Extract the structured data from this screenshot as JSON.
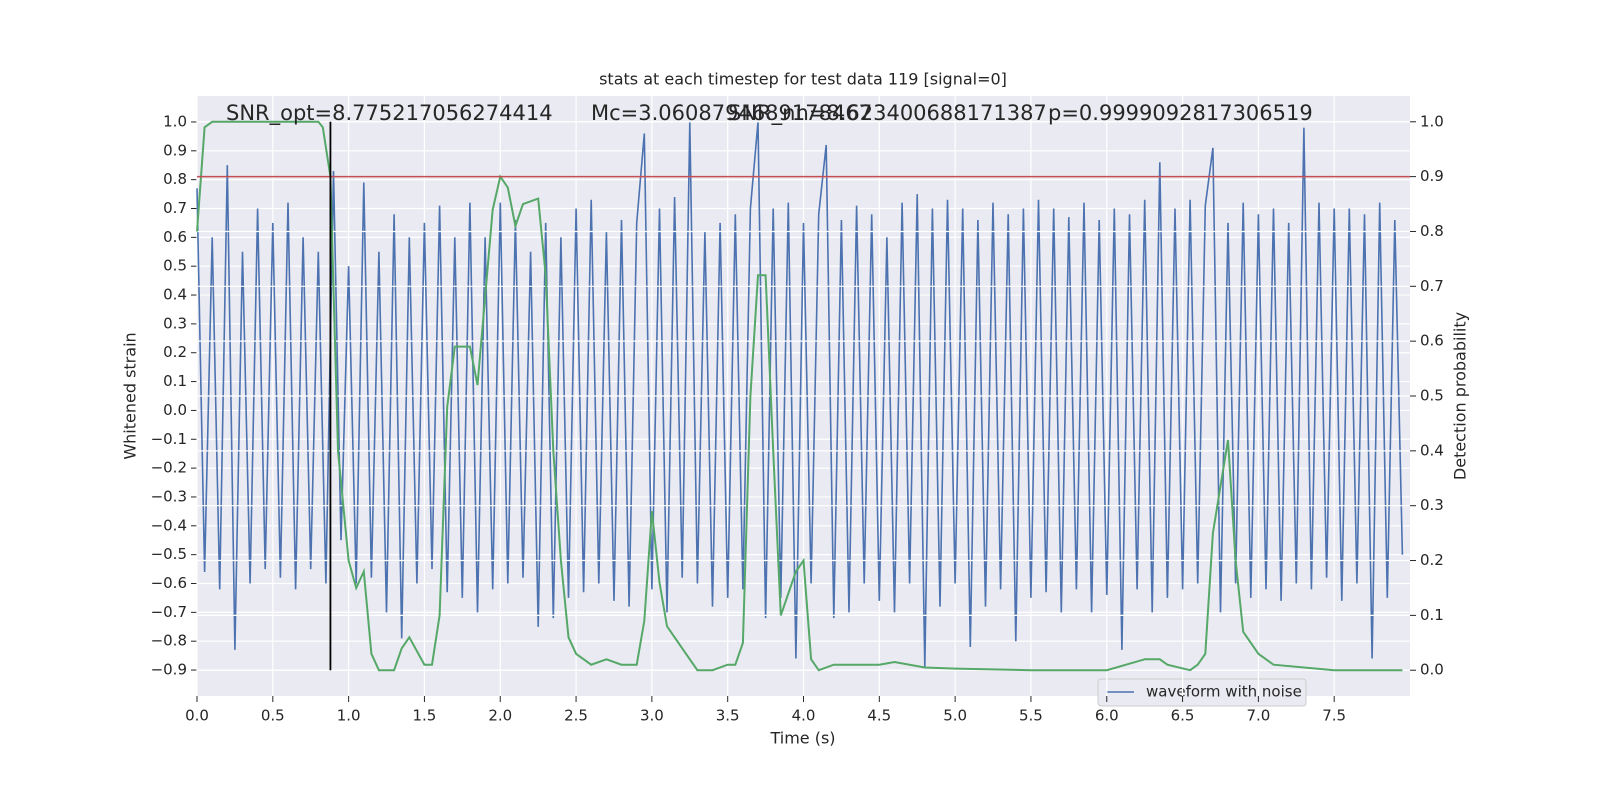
{
  "chart_data": {
    "type": "line",
    "title": "stats at each timestep for test data 119 [signal=0]",
    "annotations": [
      "SNR_opt=8.775217056274414",
      "Mc=3.0608794689178467",
      "SNR_nn=8.623400688171387",
      "p=0.9999092817306519"
    ],
    "xlabel": "Time (s)",
    "ylabel": "Whitened strain",
    "y2label": "Detection probability",
    "xlim": [
      0,
      8
    ],
    "ylim": [
      -0.99,
      1.09
    ],
    "y2lim": [
      -0.047,
      1.047
    ],
    "xticks": [
      {
        "value": 0,
        "label": "0.0"
      },
      0.5,
      {
        "value": 1,
        "label": "1.0"
      },
      1.5,
      {
        "value": 2,
        "label": "2.0"
      },
      2.5,
      {
        "value": 3,
        "label": "3.0"
      },
      3.5,
      {
        "value": 4,
        "label": "4.0"
      },
      4.5,
      {
        "value": 5,
        "label": "5.0"
      },
      5.5,
      {
        "value": 6,
        "label": "6.0"
      },
      6.5,
      {
        "value": 7,
        "label": "7.0"
      },
      7.5
    ],
    "yticks": [
      {
        "value": -0.9,
        "label": "−0.9"
      },
      {
        "value": -0.8,
        "label": "−0.8"
      },
      {
        "value": -0.7,
        "label": "−0.7"
      },
      {
        "value": -0.6,
        "label": "−0.6"
      },
      {
        "value": -0.5,
        "label": "−0.5"
      },
      {
        "value": -0.4,
        "label": "−0.4"
      },
      {
        "value": -0.3,
        "label": "−0.3"
      },
      {
        "value": -0.2,
        "label": "−0.2"
      },
      {
        "value": -0.1,
        "label": "−0.1"
      },
      {
        "value": 0,
        "label": "0.0"
      },
      0.1,
      0.2,
      0.3,
      0.4,
      0.5,
      0.6,
      0.7,
      0.8,
      0.9,
      {
        "value": 1,
        "label": "1.0"
      }
    ],
    "y2ticks": [
      {
        "value": 0,
        "label": "0.0"
      },
      0.1,
      0.2,
      0.3,
      0.4,
      0.5,
      0.6,
      0.7,
      0.8,
      0.9,
      {
        "value": 1,
        "label": "1.0"
      }
    ],
    "grid": true,
    "legend": "lower right",
    "threshold": 0.9,
    "threshold_color": "#c44e52",
    "marker_x": 0.88,
    "marker_color": "#000000",
    "series": [
      {
        "name": "waveform with noise",
        "color": "#4c72b0",
        "x": [
          0,
          0.05,
          0.1,
          0.15,
          0.2,
          0.25,
          0.3,
          0.35,
          0.4,
          0.45,
          0.5,
          0.55,
          0.6,
          0.65,
          0.7,
          0.75,
          0.8,
          0.85,
          0.9,
          0.95,
          1,
          1.05,
          1.1,
          1.15,
          1.2,
          1.25,
          1.3,
          1.35,
          1.4,
          1.45,
          1.5,
          1.55,
          1.6,
          1.65,
          1.7,
          1.75,
          1.8,
          1.85,
          1.9,
          1.95,
          2,
          2.05,
          2.1,
          2.15,
          2.2,
          2.25,
          2.3,
          2.35,
          2.4,
          2.45,
          2.5,
          2.55,
          2.6,
          2.65,
          2.7,
          2.75,
          2.8,
          2.85,
          2.9,
          2.95,
          3,
          3.05,
          3.1,
          3.15,
          3.2,
          3.25,
          3.3,
          3.35,
          3.4,
          3.45,
          3.5,
          3.55,
          3.6,
          3.65,
          3.7,
          3.75,
          3.8,
          3.85,
          3.9,
          3.95,
          4,
          4.05,
          4.1,
          4.15,
          4.2,
          4.25,
          4.3,
          4.35,
          4.4,
          4.45,
          4.5,
          4.55,
          4.6,
          4.65,
          4.7,
          4.75,
          4.8,
          4.85,
          4.9,
          4.95,
          5,
          5.05,
          5.1,
          5.15,
          5.2,
          5.25,
          5.3,
          5.35,
          5.4,
          5.45,
          5.5,
          5.55,
          5.6,
          5.65,
          5.7,
          5.75,
          5.8,
          5.85,
          5.9,
          5.95,
          6,
          6.05,
          6.1,
          6.15,
          6.2,
          6.25,
          6.3,
          6.35,
          6.4,
          6.45,
          6.5,
          6.55,
          6.6,
          6.65,
          6.7,
          6.75,
          6.8,
          6.85,
          6.9,
          6.95,
          7,
          7.05,
          7.1,
          7.15,
          7.2,
          7.25,
          7.3,
          7.35,
          7.4,
          7.45,
          7.5,
          7.55,
          7.6,
          7.65,
          7.7,
          7.75,
          7.8,
          7.85,
          7.9,
          7.95
        ],
        "values": [
          0.77,
          -0.56,
          0.6,
          -0.62,
          0.85,
          -0.83,
          0.55,
          -0.6,
          0.7,
          -0.55,
          0.65,
          -0.58,
          0.72,
          -0.62,
          0.6,
          -0.55,
          0.55,
          -0.6,
          0.83,
          -0.45,
          0.5,
          -0.6,
          0.79,
          -0.58,
          0.55,
          -0.7,
          0.68,
          -0.79,
          0.6,
          -0.6,
          0.65,
          -0.55,
          0.71,
          -0.63,
          0.6,
          -0.65,
          0.72,
          -0.7,
          0.6,
          -0.62,
          0.72,
          -0.6,
          0.66,
          -0.58,
          0.55,
          -0.75,
          0.65,
          -0.72,
          0.6,
          -0.65,
          0.7,
          -0.63,
          0.73,
          -0.6,
          0.62,
          -0.66,
          0.66,
          -0.68,
          0.65,
          0.96,
          -0.62,
          0.7,
          -0.7,
          0.74,
          -0.58,
          1.0,
          -0.6,
          0.62,
          -0.68,
          0.65,
          -0.65,
          0.68,
          -0.62,
          0.7,
          1.0,
          -0.72,
          0.7,
          -0.65,
          0.72,
          -0.86,
          0.65,
          -0.6,
          0.68,
          0.92,
          -0.72,
          0.66,
          -0.7,
          0.71,
          -0.6,
          0.68,
          -0.66,
          0.6,
          -0.7,
          0.72,
          -0.6,
          0.75,
          -0.89,
          0.7,
          -0.68,
          0.73,
          -0.6,
          0.7,
          -0.82,
          0.66,
          -0.68,
          0.72,
          -0.62,
          0.68,
          -0.8,
          0.7,
          -0.65,
          0.73,
          -0.63,
          0.7,
          -0.7,
          0.67,
          -0.62,
          0.72,
          -0.7,
          0.66,
          -0.64,
          0.7,
          -0.83,
          0.68,
          -0.62,
          0.73,
          -0.7,
          0.86,
          -0.65,
          0.7,
          -0.62,
          0.73,
          -0.6,
          0.71,
          0.91,
          -0.7,
          0.65,
          -0.6,
          0.72,
          -0.65,
          0.68,
          -0.62,
          0.7,
          -0.66,
          0.65,
          -0.6,
          0.98,
          -0.62,
          0.72,
          -0.58,
          0.7,
          -0.66,
          0.7,
          -0.6,
          0.68,
          -0.86,
          0.72,
          -0.65,
          0.66,
          -0.5
        ]
      },
      {
        "color": "#55a868",
        "axis": "y2",
        "x": [
          0,
          0.05,
          0.1,
          0.2,
          0.4,
          0.6,
          0.8,
          0.83,
          0.88,
          0.93,
          1,
          1.05,
          1.1,
          1.15,
          1.2,
          1.3,
          1.35,
          1.4,
          1.5,
          1.55,
          1.6,
          1.65,
          1.7,
          1.8,
          1.85,
          1.95,
          2,
          2.05,
          2.1,
          2.15,
          2.25,
          2.3,
          2.35,
          2.4,
          2.45,
          2.5,
          2.6,
          2.7,
          2.8,
          2.9,
          2.95,
          3,
          3.05,
          3.1,
          3.25,
          3.3,
          3.4,
          3.5,
          3.55,
          3.6,
          3.65,
          3.7,
          3.75,
          3.8,
          3.85,
          3.95,
          4,
          4.05,
          4.1,
          4.2,
          4.5,
          4.6,
          4.8,
          5,
          5.5,
          6,
          6.25,
          6.35,
          6.4,
          6.55,
          6.6,
          6.65,
          6.7,
          6.8,
          6.85,
          6.9,
          7,
          7.1,
          7.5,
          7.95
        ],
        "values": [
          0.8,
          0.99,
          1.0,
          1.0,
          1.0,
          1.0,
          1.0,
          0.99,
          0.9,
          0.4,
          0.2,
          0.15,
          0.18,
          0.03,
          0.0,
          0.0,
          0.04,
          0.06,
          0.01,
          0.01,
          0.1,
          0.48,
          0.59,
          0.59,
          0.52,
          0.84,
          0.9,
          0.88,
          0.81,
          0.85,
          0.86,
          0.72,
          0.4,
          0.2,
          0.06,
          0.03,
          0.01,
          0.02,
          0.01,
          0.01,
          0.09,
          0.29,
          0.16,
          0.08,
          0.02,
          0.0,
          0.0,
          0.01,
          0.01,
          0.05,
          0.5,
          0.72,
          0.72,
          0.4,
          0.1,
          0.18,
          0.2,
          0.02,
          0.0,
          0.01,
          0.01,
          0.015,
          0.005,
          0.003,
          0.0,
          0.0,
          0.02,
          0.02,
          0.01,
          0.0,
          0.01,
          0.03,
          0.25,
          0.42,
          0.2,
          0.07,
          0.03,
          0.01,
          0.0,
          0.0
        ]
      }
    ]
  }
}
